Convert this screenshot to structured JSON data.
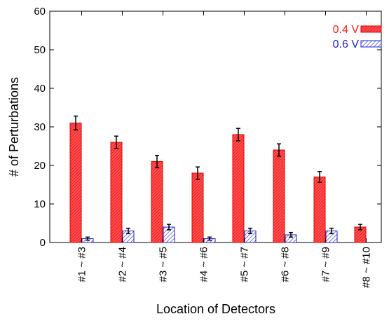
{
  "chart_data": {
    "type": "bar",
    "title": "",
    "xlabel": "Location of Detectors",
    "ylabel": "# of Perturbations",
    "ylim": [
      0,
      60
    ],
    "yticks": [
      0,
      10,
      20,
      30,
      40,
      50,
      60
    ],
    "categories": [
      "#1 ~ #3",
      "#2 ~ #4",
      "#3 ~ #5",
      "#4 ~ #6",
      "#5 ~ #7",
      "#6 ~ #8",
      "#7 ~ #9",
      "#8 ~ #10"
    ],
    "series": [
      {
        "name": "0.4 V",
        "color": "#ff3333",
        "pattern": "dense-hatch",
        "values": [
          31,
          26,
          21,
          18,
          28,
          24,
          17,
          4
        ],
        "errors": [
          1.8,
          1.6,
          1.6,
          1.6,
          1.6,
          1.6,
          1.4,
          0.7
        ]
      },
      {
        "name": "0.6 V",
        "color": "#2222cc",
        "pattern": "sparse-hatch",
        "values": [
          1,
          3,
          4,
          1,
          3,
          2,
          3,
          null
        ],
        "errors": [
          0.4,
          0.7,
          0.7,
          0.4,
          0.7,
          0.6,
          0.7,
          null
        ]
      }
    ],
    "legend_position": "top-right",
    "grid": false,
    "error_bars": true
  }
}
